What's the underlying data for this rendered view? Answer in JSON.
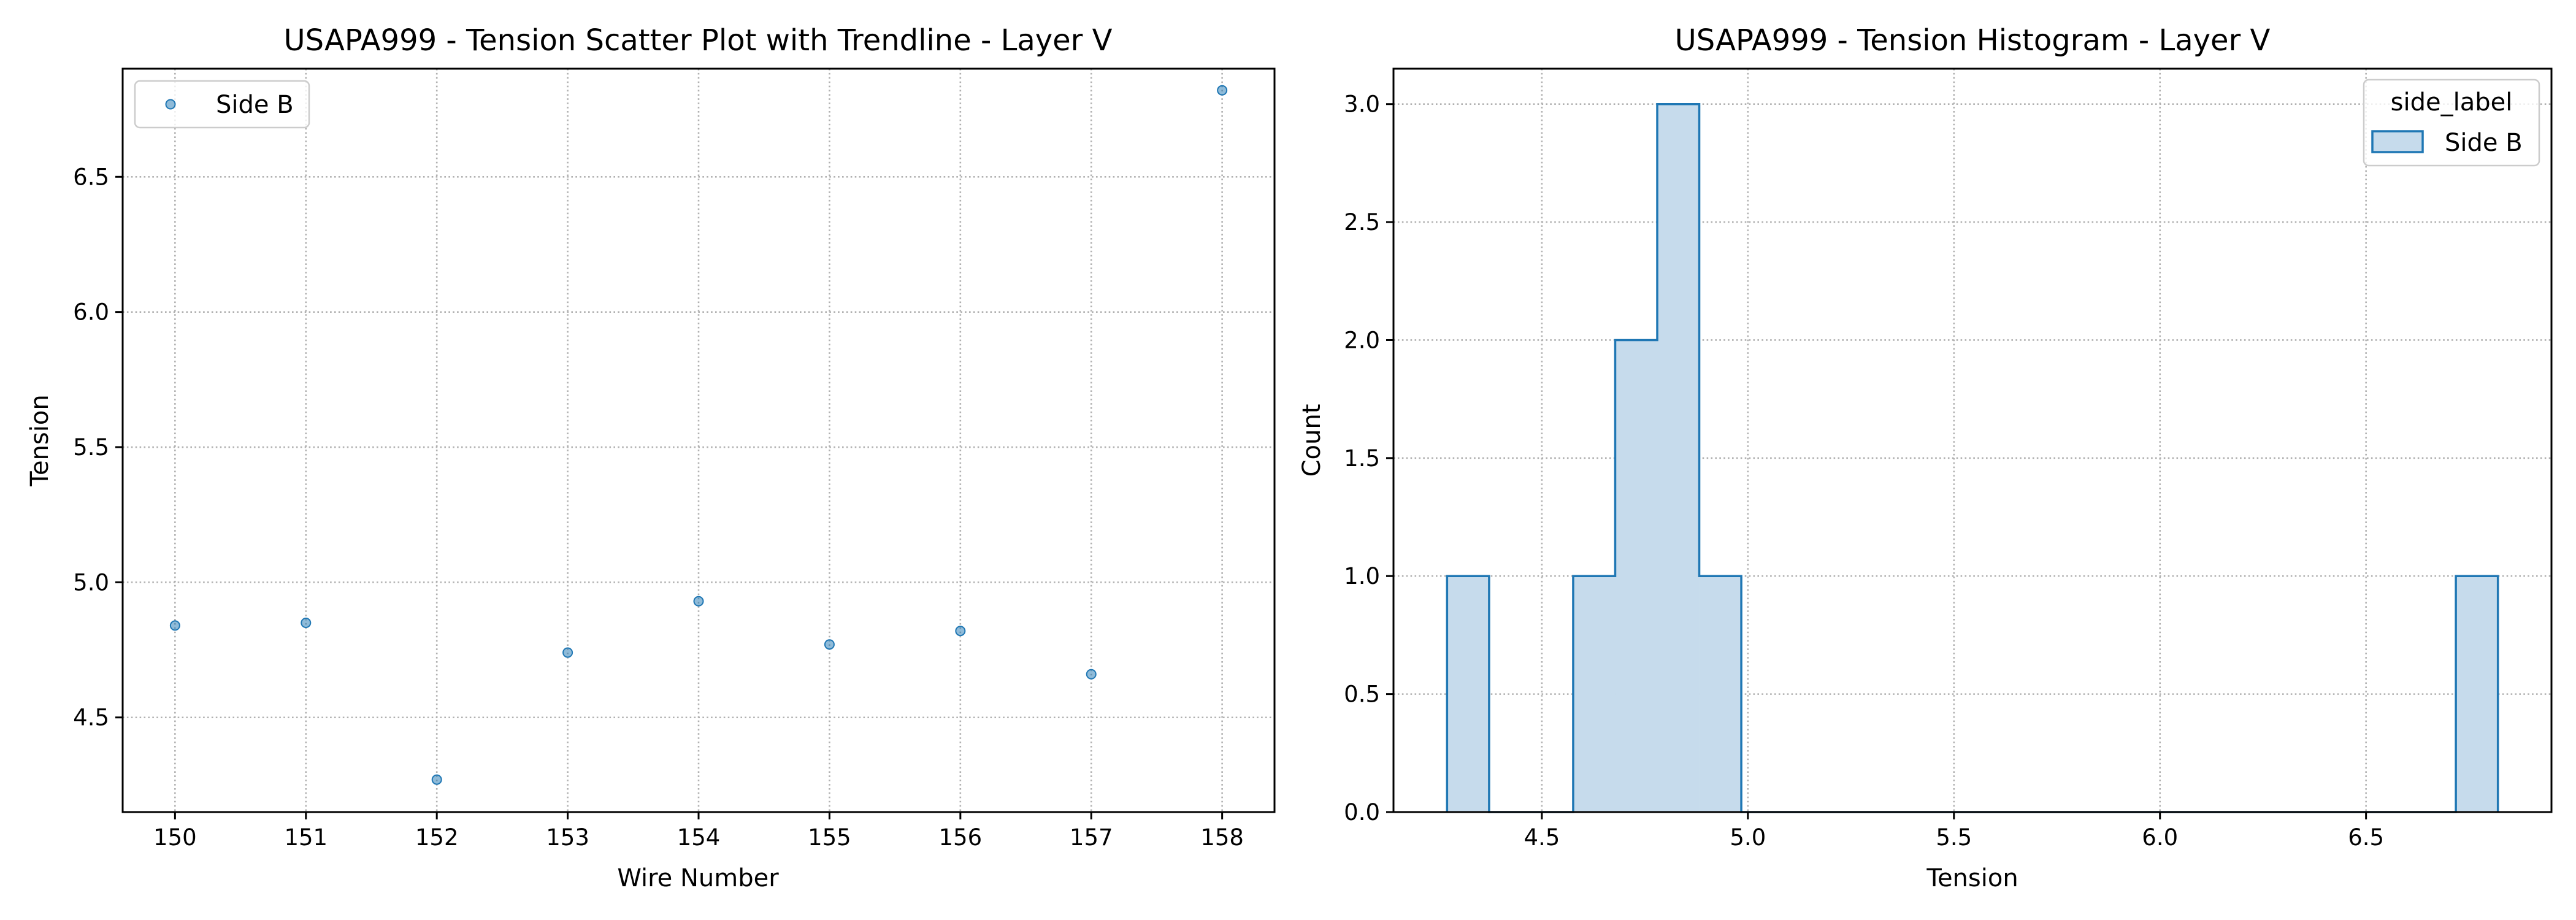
{
  "chart_data": [
    {
      "type": "scatter",
      "title": "USAPA999 - Tension Scatter Plot with Trendline - Layer V",
      "xlabel": "Wire Number",
      "ylabel": "Tension",
      "xlim": [
        149.6,
        158.4
      ],
      "ylim": [
        4.15,
        6.9
      ],
      "xticks": [
        150,
        151,
        152,
        153,
        154,
        155,
        156,
        157,
        158
      ],
      "yticks": [
        4.5,
        5.0,
        5.5,
        6.0,
        6.5
      ],
      "xtick_labels": [
        "150",
        "151",
        "152",
        "153",
        "154",
        "155",
        "156",
        "157",
        "158"
      ],
      "ytick_labels": [
        "4.5",
        "5.0",
        "5.5",
        "6.0",
        "6.5"
      ],
      "grid": true,
      "legend_position": "top-left",
      "series": [
        {
          "name": "Side B",
          "color": "#1f77b4",
          "x": [
            150,
            151,
            152,
            153,
            154,
            155,
            156,
            157,
            158
          ],
          "y": [
            4.84,
            4.85,
            4.27,
            4.74,
            4.93,
            4.77,
            4.82,
            4.66,
            6.82
          ]
        }
      ]
    },
    {
      "type": "histogram",
      "title": "USAPA999 - Tension Histogram - Layer V",
      "xlabel": "Tension",
      "ylabel": "Count",
      "xlim": [
        4.14,
        6.95
      ],
      "ylim": [
        0,
        3.15
      ],
      "xticks": [
        4.5,
        5.0,
        5.5,
        6.0,
        6.5
      ],
      "yticks": [
        0.0,
        0.5,
        1.0,
        1.5,
        2.0,
        2.5,
        3.0
      ],
      "xtick_labels": [
        "4.5",
        "5.0",
        "5.5",
        "6.0",
        "6.5"
      ],
      "ytick_labels": [
        "0.0",
        "0.5",
        "1.0",
        "1.5",
        "2.0",
        "2.5",
        "3.0"
      ],
      "grid": true,
      "legend_title": "side_label",
      "legend_position": "top-right",
      "bin_edges": [
        4.27,
        4.372,
        4.474,
        4.576,
        4.678,
        4.78,
        4.882,
        4.984,
        5.086,
        5.188,
        5.29,
        5.392,
        5.494,
        5.596,
        5.698,
        5.8,
        5.902,
        6.004,
        6.106,
        6.208,
        6.31,
        6.412,
        6.514,
        6.616,
        6.718,
        6.82
      ],
      "series": [
        {
          "name": "Side B",
          "color": "#1f77b4",
          "fill": "#c6dbec",
          "counts": [
            1,
            0,
            0,
            1,
            2,
            3,
            1,
            0,
            0,
            0,
            0,
            0,
            0,
            0,
            0,
            0,
            0,
            0,
            0,
            0,
            0,
            0,
            0,
            0,
            1
          ]
        }
      ]
    }
  ]
}
